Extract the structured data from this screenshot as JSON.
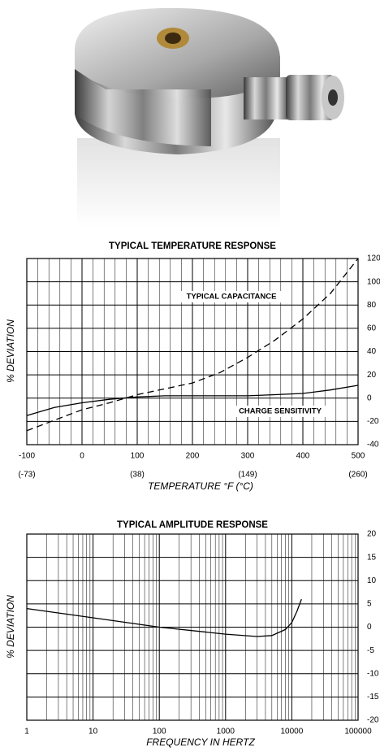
{
  "chart_data": [
    {
      "type": "line",
      "title": "TYPICAL TEMPERATURE RESPONSE",
      "xlabel": "TEMPERATURE °F (°C)",
      "ylabel": "% DEVIATION",
      "annotations": [
        "TYPICAL CAPACITANCE",
        "CHARGE SENSITIVITY"
      ],
      "x": [
        -100,
        -50,
        0,
        50,
        100,
        150,
        200,
        250,
        300,
        350,
        400,
        450,
        500
      ],
      "series": [
        {
          "name": "TYPICAL CAPACITANCE",
          "color": "#000000",
          "dashed": true,
          "values": [
            -28,
            -19,
            -10,
            -4,
            3,
            8,
            13,
            22,
            35,
            50,
            68,
            90,
            120
          ]
        },
        {
          "name": "CHARGE SENSITIVITY",
          "color": "#000000",
          "dashed": false,
          "values": [
            -15,
            -8,
            -4,
            -1,
            1,
            2,
            2,
            2,
            2,
            3,
            4,
            7,
            11
          ]
        }
      ],
      "xlim": [
        -100,
        500
      ],
      "ylim": [
        -40,
        120
      ],
      "xticks": [
        -100,
        0,
        100,
        200,
        300,
        400,
        500
      ],
      "xminorticks": [
        -80,
        -60,
        -40,
        -20,
        20,
        40,
        60,
        80,
        120,
        140,
        160,
        180,
        220,
        240,
        260,
        280,
        320,
        340,
        360,
        380,
        420,
        440,
        460,
        480
      ],
      "x2ticks": [
        {
          "value": -100,
          "label": "(-73)"
        },
        {
          "value": 100,
          "label": "(38)"
        },
        {
          "value": 300,
          "label": "(149)"
        },
        {
          "value": 500,
          "label": "(260)"
        }
      ],
      "yticks": [
        -40,
        -20,
        0,
        20,
        40,
        60,
        80,
        100,
        120
      ],
      "log_x": false,
      "grid": true
    },
    {
      "type": "line",
      "title": "TYPICAL AMPLITUDE RESPONSE",
      "xlabel": "FREQUENCY IN HERTZ",
      "ylabel": "% DEVIATION",
      "x": [
        1,
        10,
        100,
        1000,
        3000,
        5000,
        8000,
        10000,
        12000,
        14000
      ],
      "series": [
        {
          "name": "AMPLITUDE",
          "color": "#000000",
          "dashed": false,
          "values": [
            4,
            2,
            0,
            -1.5,
            -2,
            -1.8,
            -0.5,
            1,
            3.5,
            6
          ]
        }
      ],
      "xlim": [
        1,
        100000
      ],
      "ylim": [
        -20,
        20
      ],
      "xticks": [
        1,
        10,
        100,
        1000,
        10000,
        100000
      ],
      "xminorticks": [
        2,
        3,
        4,
        5,
        6,
        7,
        8,
        9,
        20,
        30,
        40,
        50,
        60,
        70,
        80,
        90,
        200,
        300,
        400,
        500,
        600,
        700,
        800,
        900,
        2000,
        3000,
        4000,
        5000,
        6000,
        7000,
        8000,
        9000,
        20000,
        30000,
        40000,
        50000,
        60000,
        70000,
        80000,
        90000
      ],
      "yticks": [
        -20,
        -15,
        -10,
        -5,
        0,
        5,
        10,
        15,
        20
      ],
      "log_x": true,
      "grid": true
    }
  ]
}
